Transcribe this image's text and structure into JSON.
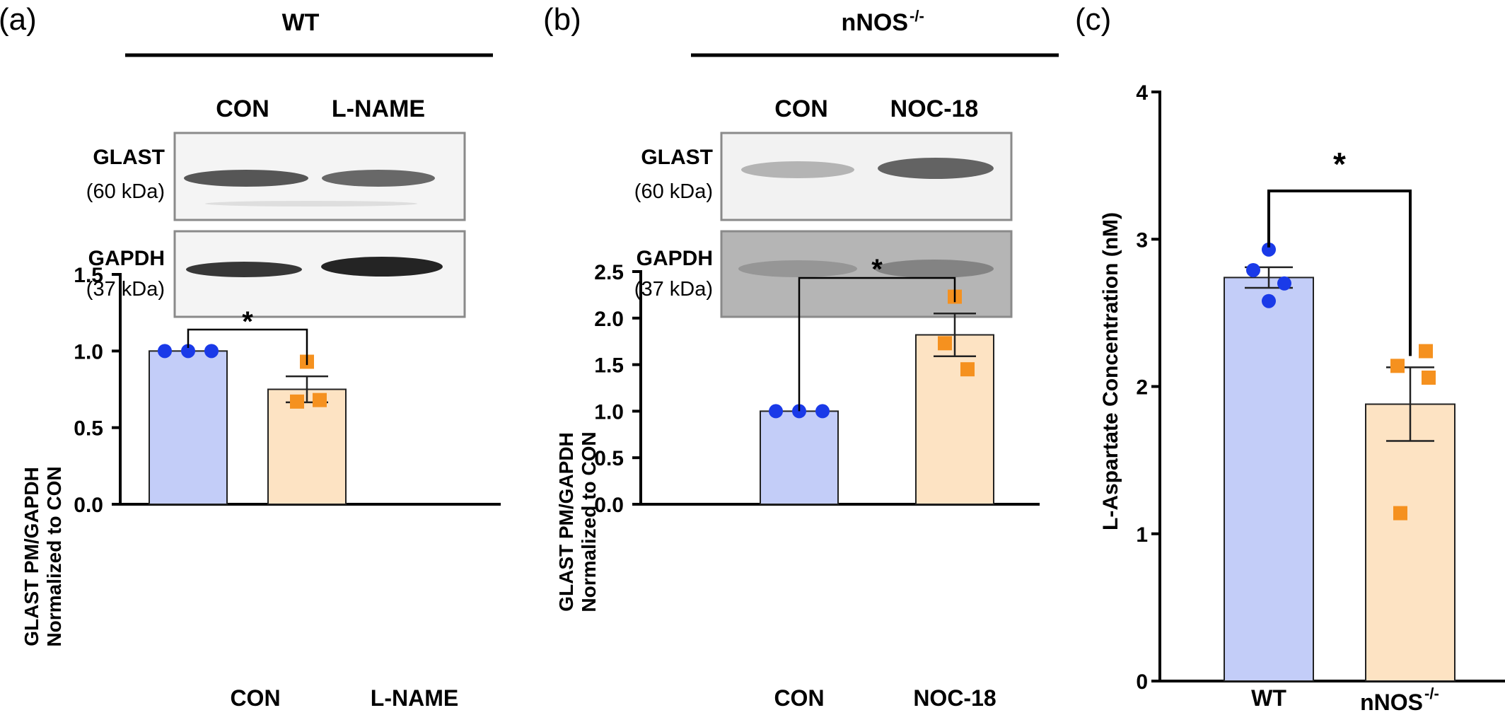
{
  "panels": {
    "a": {
      "label": "(a)",
      "header": "WT",
      "lanes": [
        "CON",
        "L-NAME"
      ],
      "blots": [
        {
          "name": "GLAST",
          "size": "(60 kDa)"
        },
        {
          "name": "GAPDH",
          "size": "(37 kDa)"
        }
      ]
    },
    "b": {
      "label": "(b)",
      "header_main": "nNOS",
      "header_sup": "-/-",
      "lanes": [
        "CON",
        "NOC-18"
      ],
      "blots": [
        {
          "name": "GLAST",
          "size": "(60 kDa)"
        },
        {
          "name": "GAPDH",
          "size": "(37 kDa)"
        }
      ]
    },
    "c": {
      "label": "(c)"
    }
  },
  "chart_data": [
    {
      "type": "bar",
      "panel": "a",
      "categories": [
        "CON",
        "L-NAME"
      ],
      "values": [
        1.0,
        0.75
      ],
      "sem": [
        0.0,
        0.085
      ],
      "points": [
        [
          1.0,
          1.0,
          1.0
        ],
        [
          0.93,
          0.67,
          0.68
        ]
      ],
      "ylabel_line1": "GLAST PM/GAPDH",
      "ylabel_line2": "Normalized to CON",
      "ylim": [
        0,
        1.5
      ],
      "yticks": [
        "0.0",
        "0.5",
        "1.0",
        "1.5"
      ],
      "significance": "*",
      "colors": {
        "bar1": "#c3cdf8",
        "bar2": "#fde3c3",
        "pt1": "#1a3ae8",
        "pt2": "#f5911f"
      }
    },
    {
      "type": "bar",
      "panel": "b",
      "categories": [
        "CON",
        "NOC-18"
      ],
      "values": [
        1.0,
        1.82
      ],
      "sem": [
        0.0,
        0.23
      ],
      "points": [
        [
          1.0,
          1.0,
          1.0
        ],
        [
          2.23,
          1.73,
          1.45
        ]
      ],
      "ylabel_line1": "GLAST PM/GAPDH",
      "ylabel_line2": "Normalized to CON",
      "ylim": [
        0,
        2.5
      ],
      "yticks": [
        "0.0",
        "0.5",
        "1.0",
        "1.5",
        "2.0",
        "2.5"
      ],
      "significance": "*",
      "colors": {
        "bar1": "#c3cdf8",
        "bar2": "#fde3c3",
        "pt1": "#1a3ae8",
        "pt2": "#f5911f"
      }
    },
    {
      "type": "bar",
      "panel": "c",
      "categories": [
        "WT",
        "nNOS"
      ],
      "category_sup": [
        "",
        "-/-"
      ],
      "values": [
        2.74,
        1.88
      ],
      "sem": [
        0.07,
        0.25
      ],
      "points": [
        [
          2.93,
          2.79,
          2.7,
          2.58
        ],
        [
          2.24,
          2.14,
          2.06,
          1.14
        ]
      ],
      "ylabel": "L-Aspartate Concentration (nM)",
      "ylim": [
        0,
        4
      ],
      "yticks": [
        "0",
        "1",
        "2",
        "3",
        "4"
      ],
      "significance": "*",
      "colors": {
        "bar1": "#c3cdf8",
        "bar2": "#fde3c3",
        "pt1": "#1a3ae8",
        "pt2": "#f5911f"
      }
    }
  ]
}
